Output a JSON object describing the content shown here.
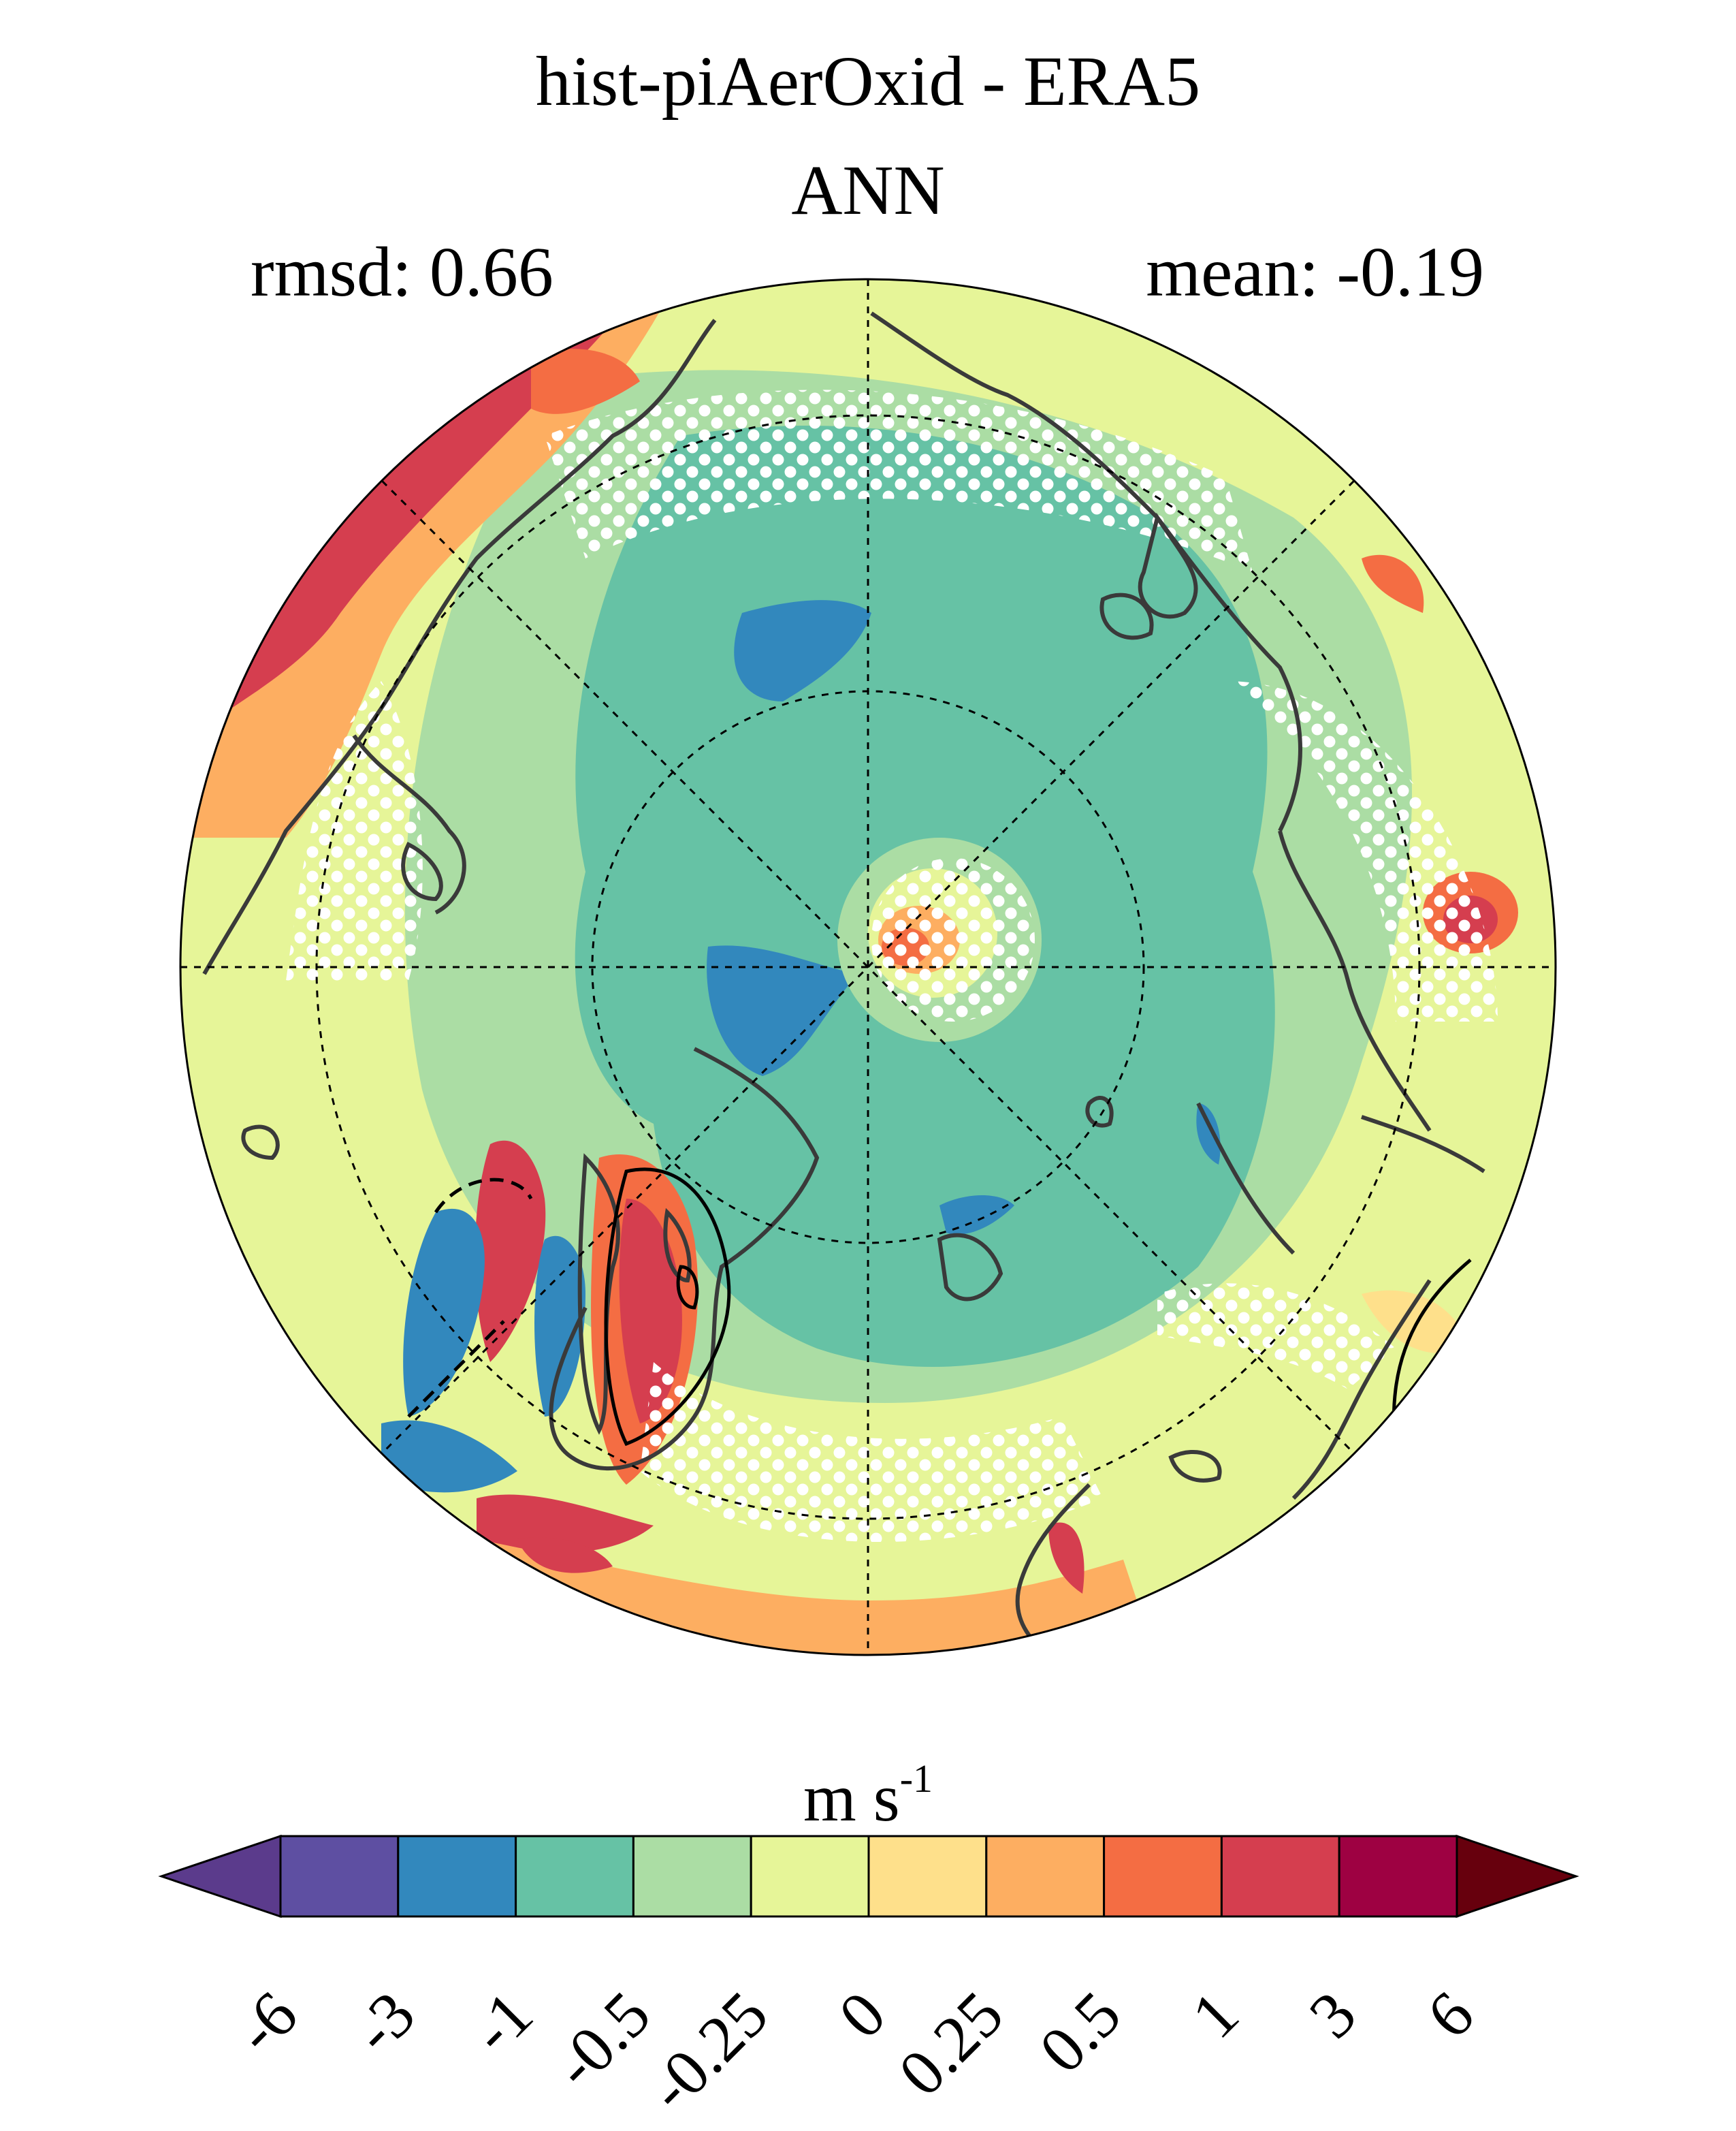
{
  "title": "hist-piAerOxid - ERA5",
  "season": "ANN",
  "rmsd": "rmsd: 0.66",
  "mean": "mean: -0.19",
  "colorbar": {
    "unit_base": "m s",
    "unit_exp": "-1",
    "ticks": [
      "-6",
      "-3",
      "-1",
      "-0.5",
      "-0.25",
      "0",
      "0.25",
      "0.5",
      "1",
      "3",
      "6"
    ],
    "colors": [
      "#5e4fa2",
      "#3288bd",
      "#66c2a5",
      "#abdda4",
      "#e6f598",
      "#fee08b",
      "#fdae61",
      "#f46d43",
      "#d53e4f",
      "#9e0142"
    ],
    "low_extend_color": "#5b3b8c",
    "high_extend_color": "#67000d"
  },
  "map": {
    "projection": "north polar stereographic",
    "stippling": "white dots mark areas of significance"
  }
}
